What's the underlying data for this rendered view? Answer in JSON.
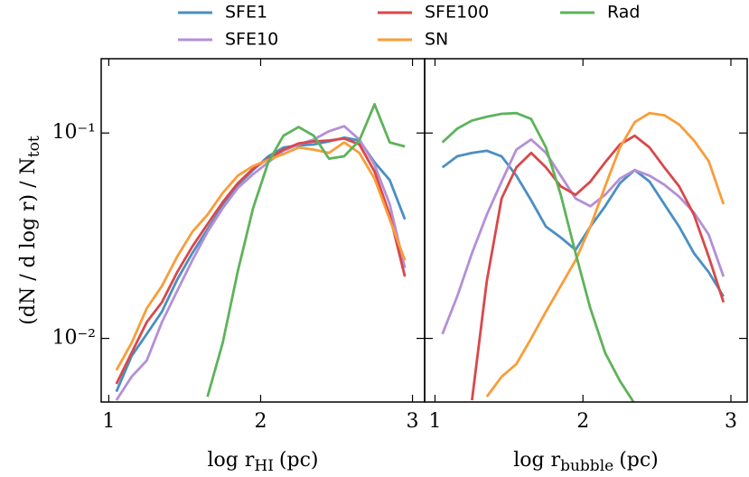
{
  "legend": {
    "position": "top"
  },
  "chart_data": [
    {
      "type": "line",
      "log_y": true,
      "xlabel": "log r",
      "xlabel_sub": "HI",
      "xlabel_unit": "(pc)",
      "ylabel": "(dN / d log r) / N",
      "ylabel_sub": "tot",
      "xlim": [
        0.95,
        3.08
      ],
      "xticks": [
        1,
        2,
        3
      ],
      "ylim": [
        0.0049,
        0.23
      ],
      "yticks": [
        {
          "value": 0.01,
          "label": "10⁻²"
        },
        {
          "value": 0.1,
          "label": "10⁻¹"
        }
      ],
      "series": [
        {
          "name": "SFE1",
          "color": "#4a8fc2",
          "x": [
            1.05,
            1.15,
            1.25,
            1.35,
            1.45,
            1.55,
            1.65,
            1.75,
            1.85,
            1.95,
            2.05,
            2.15,
            2.25,
            2.35,
            2.45,
            2.55,
            2.65,
            2.75,
            2.85,
            2.95
          ],
          "values": [
            0.0055,
            0.0082,
            0.0105,
            0.0135,
            0.0193,
            0.026,
            0.034,
            0.044,
            0.056,
            0.066,
            0.077,
            0.085,
            0.087,
            0.088,
            0.091,
            0.095,
            0.092,
            0.072,
            0.059,
            0.038
          ]
        },
        {
          "name": "SFE10",
          "color": "#b48fd6",
          "x": [
            1.05,
            1.15,
            1.25,
            1.35,
            1.45,
            1.55,
            1.65,
            1.75,
            1.85,
            1.95,
            2.05,
            2.15,
            2.25,
            2.35,
            2.45,
            2.55,
            2.65,
            2.75,
            2.85,
            2.95
          ],
          "values": [
            0.005,
            0.0065,
            0.0078,
            0.012,
            0.017,
            0.024,
            0.033,
            0.043,
            0.054,
            0.063,
            0.072,
            0.082,
            0.088,
            0.093,
            0.102,
            0.108,
            0.093,
            0.07,
            0.045,
            0.022
          ]
        },
        {
          "name": "SFE100",
          "color": "#d9484a",
          "x": [
            1.05,
            1.15,
            1.25,
            1.35,
            1.45,
            1.55,
            1.65,
            1.75,
            1.85,
            1.95,
            2.05,
            2.15,
            2.25,
            2.35,
            2.45,
            2.55,
            2.65,
            2.75,
            2.85,
            2.95
          ],
          "values": [
            0.006,
            0.0085,
            0.012,
            0.015,
            0.021,
            0.028,
            0.036,
            0.046,
            0.057,
            0.067,
            0.075,
            0.083,
            0.089,
            0.091,
            0.092,
            0.094,
            0.088,
            0.065,
            0.04,
            0.02
          ]
        },
        {
          "name": "SN",
          "color": "#f99d3a",
          "x": [
            1.05,
            1.15,
            1.25,
            1.35,
            1.45,
            1.55,
            1.65,
            1.75,
            1.85,
            1.95,
            2.05,
            2.15,
            2.25,
            2.35,
            2.45,
            2.55,
            2.65,
            2.75,
            2.85,
            2.95
          ],
          "values": [
            0.007,
            0.0095,
            0.014,
            0.018,
            0.025,
            0.033,
            0.04,
            0.051,
            0.062,
            0.069,
            0.074,
            0.079,
            0.085,
            0.083,
            0.08,
            0.09,
            0.08,
            0.06,
            0.038,
            0.024
          ]
        },
        {
          "name": "Rad",
          "color": "#5db35a",
          "x": [
            1.65,
            1.75,
            1.85,
            1.95,
            2.05,
            2.15,
            2.25,
            2.35,
            2.45,
            2.55,
            2.65,
            2.75,
            2.85,
            2.95
          ],
          "values": [
            0.0052,
            0.0095,
            0.0213,
            0.043,
            0.072,
            0.097,
            0.107,
            0.097,
            0.075,
            0.077,
            0.092,
            0.138,
            0.09,
            0.086
          ]
        }
      ]
    },
    {
      "type": "line",
      "log_y": true,
      "xlabel": "log r",
      "xlabel_sub": "bubble",
      "xlabel_unit": "(pc)",
      "xlim": [
        0.93,
        3.11
      ],
      "xticks": [
        1,
        2,
        3
      ],
      "ylim": [
        0.0049,
        0.23
      ],
      "yticks": [
        {
          "value": 0.01,
          "label": "10⁻²"
        },
        {
          "value": 0.1,
          "label": "10⁻¹"
        }
      ],
      "series": [
        {
          "name": "SFE1",
          "color": "#4a8fc2",
          "x": [
            1.05,
            1.15,
            1.25,
            1.35,
            1.45,
            1.55,
            1.65,
            1.75,
            1.85,
            1.95,
            2.05,
            2.15,
            2.25,
            2.35,
            2.45,
            2.55,
            2.65,
            2.75,
            2.85,
            2.95
          ],
          "values": [
            0.068,
            0.077,
            0.08,
            0.082,
            0.077,
            0.062,
            0.047,
            0.035,
            0.031,
            0.027,
            0.035,
            0.044,
            0.057,
            0.066,
            0.058,
            0.045,
            0.035,
            0.026,
            0.021,
            0.016
          ]
        },
        {
          "name": "SFE10",
          "color": "#b48fd6",
          "x": [
            1.05,
            1.15,
            1.25,
            1.35,
            1.45,
            1.55,
            1.65,
            1.75,
            1.85,
            1.95,
            2.05,
            2.15,
            2.25,
            2.35,
            2.45,
            2.55,
            2.65,
            2.75,
            2.85,
            2.95
          ],
          "values": [
            0.0105,
            0.016,
            0.026,
            0.04,
            0.058,
            0.083,
            0.093,
            0.08,
            0.062,
            0.048,
            0.044,
            0.05,
            0.06,
            0.066,
            0.062,
            0.056,
            0.049,
            0.041,
            0.032,
            0.02
          ]
        },
        {
          "name": "SFE100",
          "color": "#d9484a",
          "x": [
            1.25,
            1.35,
            1.45,
            1.55,
            1.65,
            1.75,
            1.85,
            1.95,
            2.05,
            2.15,
            2.25,
            2.35,
            2.45,
            2.55,
            2.65,
            2.75,
            2.85,
            2.95
          ],
          "values": [
            0.005,
            0.019,
            0.048,
            0.068,
            0.08,
            0.068,
            0.055,
            0.05,
            0.058,
            0.072,
            0.088,
            0.097,
            0.085,
            0.068,
            0.055,
            0.04,
            0.025,
            0.015
          ]
        },
        {
          "name": "SN",
          "color": "#f99d3a",
          "x": [
            1.35,
            1.45,
            1.55,
            1.65,
            1.75,
            1.85,
            1.95,
            2.05,
            2.15,
            2.25,
            2.35,
            2.45,
            2.55,
            2.65,
            2.75,
            2.85,
            2.95
          ],
          "values": [
            0.0052,
            0.0065,
            0.0075,
            0.01,
            0.0135,
            0.018,
            0.024,
            0.035,
            0.055,
            0.085,
            0.113,
            0.125,
            0.122,
            0.11,
            0.092,
            0.073,
            0.045
          ]
        },
        {
          "name": "Rad",
          "color": "#5db35a",
          "x": [
            1.05,
            1.15,
            1.25,
            1.35,
            1.45,
            1.55,
            1.65,
            1.75,
            1.85,
            1.95,
            2.05,
            2.15,
            2.25,
            2.35
          ],
          "values": [
            0.09,
            0.105,
            0.115,
            0.12,
            0.124,
            0.125,
            0.117,
            0.085,
            0.05,
            0.026,
            0.014,
            0.0085,
            0.0062,
            0.0048
          ]
        }
      ]
    }
  ]
}
